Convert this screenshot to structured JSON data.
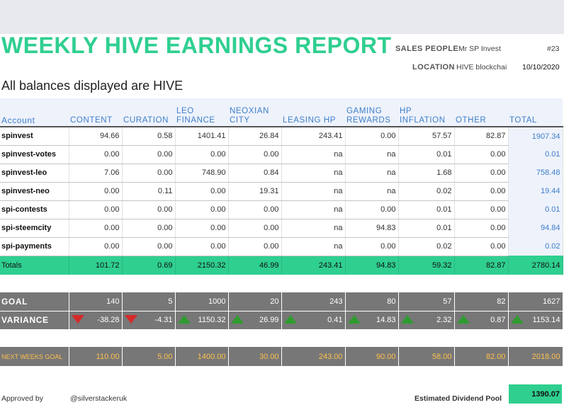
{
  "header": {
    "title": "WEEKLY HIVE EARNINGS REPORT",
    "sales_people_label": "SALES PEOPLE",
    "sales_people_value": "Mr SP Invest",
    "report_number": "#23",
    "location_label": "LOCATION",
    "location_value": "HIVE blockchai",
    "date": "10/10/2020"
  },
  "subtitle": "All balances displayed are HIVE",
  "columns": [
    "Account",
    "CONTENT",
    "CURATION",
    "LEO FINANCE",
    "NEOXIAN CITY",
    "LEASING HP",
    "GAMING REWARDS",
    "HP INFLATION",
    "OTHER",
    "TOTAL"
  ],
  "rows": [
    {
      "account": "spinvest",
      "values": [
        "94.66",
        "0.58",
        "1401.41",
        "26.84",
        "243.41",
        "0.00",
        "57.57",
        "82.87"
      ],
      "total": "1907.34"
    },
    {
      "account": "spinvest-votes",
      "values": [
        "0.00",
        "0.00",
        "0.00",
        "0.00",
        "na",
        "na",
        "0.01",
        "0.00"
      ],
      "total": "0.01"
    },
    {
      "account": "spinvest-leo",
      "values": [
        "7.06",
        "0.00",
        "748.90",
        "0.84",
        "na",
        "na",
        "1.68",
        "0.00"
      ],
      "total": "758.48"
    },
    {
      "account": "spinvest-neo",
      "values": [
        "0.00",
        "0.11",
        "0.00",
        "19.31",
        "na",
        "na",
        "0.02",
        "0.00"
      ],
      "total": "19.44"
    },
    {
      "account": "spi-contests",
      "values": [
        "0.00",
        "0.00",
        "0.00",
        "0.00",
        "na",
        "0.00",
        "0.01",
        "0.00"
      ],
      "total": "0.01"
    },
    {
      "account": "spi-steemcity",
      "values": [
        "0.00",
        "0.00",
        "0.00",
        "0.00",
        "na",
        "94.83",
        "0.01",
        "0.00"
      ],
      "total": "94.84"
    },
    {
      "account": "spi-payments",
      "values": [
        "0.00",
        "0.00",
        "0.00",
        "0.00",
        "na",
        "0.00",
        "0.02",
        "0.00"
      ],
      "total": "0.02"
    }
  ],
  "totals": {
    "label": "Totals",
    "values": [
      "101.72",
      "0.69",
      "2150.32",
      "46.99",
      "243.41",
      "94.83",
      "59.32",
      "82.87",
      "2780.14"
    ]
  },
  "goal": {
    "label": "GOAL",
    "values": [
      "140",
      "5",
      "1000",
      "20",
      "243",
      "80",
      "57",
      "82",
      "1627"
    ]
  },
  "variance": {
    "label": "VARIANCE",
    "values": [
      "-38.28",
      "-4.31",
      "1150.32",
      "26.99",
      "0.41",
      "14.83",
      "2.32",
      "0.87",
      "1153.14"
    ],
    "arrows": [
      "down-arrow",
      "down-arrow",
      "up-arrow",
      "up-arrow",
      "up-arrow",
      "up-arrow",
      "up-arrow",
      "up-arrow",
      "up-arrow"
    ],
    "colors": {
      "up": "#2e9c2e",
      "down": "#d42a2a"
    }
  },
  "next_goal": {
    "label": "NEXT WEEKS GOAL",
    "values": [
      "110.00",
      "5.00",
      "1400.00",
      "30.00",
      "243.00",
      "90.00",
      "58.00",
      "82.00",
      "2018.00"
    ]
  },
  "footer": {
    "approved_label": "Approved by",
    "approved_value": "@silverstackeruk",
    "pool_label": "Estimated Dividend Pool",
    "pool_value": "1390.07"
  },
  "colors": {
    "accent_green": "#2fcf90",
    "header_blue": "#3d7ec9",
    "goal_gray": "#777777",
    "next_goal_orange": "#ffc14d"
  }
}
